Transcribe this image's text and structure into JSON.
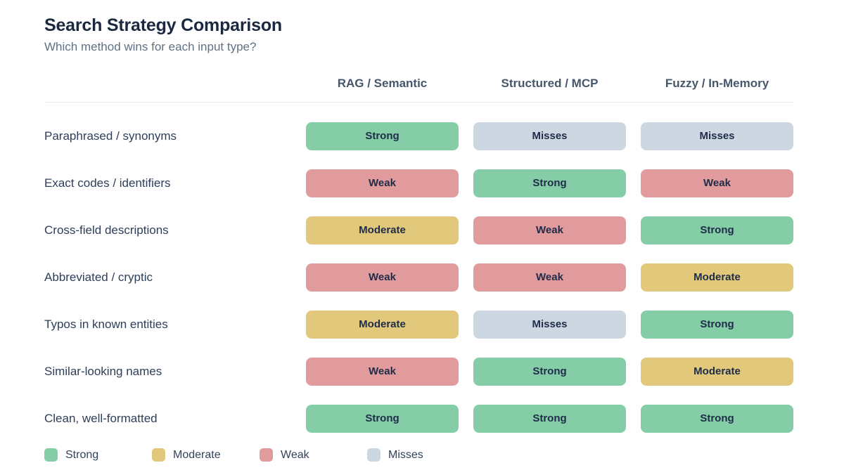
{
  "chart_data": {
    "type": "table",
    "title": "Search Strategy Comparison",
    "subtitle": "Which method wins for each input type?",
    "columns": [
      "RAG / Semantic",
      "Structured / MCP",
      "Fuzzy / In-Memory"
    ],
    "rows": [
      "Paraphrased / synonyms",
      "Exact codes / identifiers",
      "Cross-field descriptions",
      "Abbreviated / cryptic",
      "Typos in known entities",
      "Similar-looking names",
      "Clean, well-formatted"
    ],
    "values": [
      [
        "Strong",
        "Misses",
        "Misses"
      ],
      [
        "Weak",
        "Strong",
        "Weak"
      ],
      [
        "Moderate",
        "Weak",
        "Strong"
      ],
      [
        "Weak",
        "Weak",
        "Moderate"
      ],
      [
        "Moderate",
        "Misses",
        "Strong"
      ],
      [
        "Weak",
        "Strong",
        "Moderate"
      ],
      [
        "Strong",
        "Strong",
        "Strong"
      ]
    ],
    "scale": [
      "Strong",
      "Moderate",
      "Weak",
      "Misses"
    ],
    "legend_position": "bottom",
    "grid": false
  },
  "colors": {
    "Strong": "#85cda6",
    "Moderate": "#e2c87b",
    "Weak": "#e19b9d",
    "Misses": "#cdd7e2",
    "title_text": "#1b2940",
    "pill_text": "#1e2c49",
    "divider": "#e3e8ee"
  }
}
